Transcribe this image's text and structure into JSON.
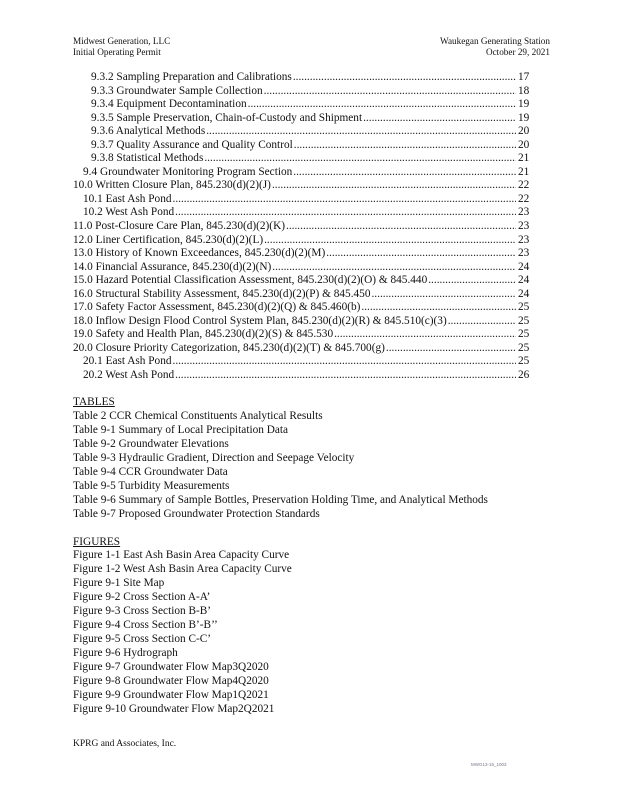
{
  "header": {
    "company": "Midwest Generation, LLC",
    "document": "Initial Operating Permit",
    "station": "Waukegan Generating Station",
    "date": "October 29, 2021"
  },
  "toc": [
    {
      "title": "9.3.2 Sampling Preparation and Calibrations",
      "page": "17",
      "level": 3
    },
    {
      "title": "9.3.3 Groundwater Sample Collection",
      "page": "18",
      "level": 3
    },
    {
      "title": "9.3.4 Equipment Decontamination",
      "page": "19",
      "level": 3
    },
    {
      "title": "9.3.5 Sample Preservation, Chain-of-Custody and Shipment",
      "page": "19",
      "level": 3
    },
    {
      "title": "9.3.6 Analytical Methods",
      "page": "20",
      "level": 3
    },
    {
      "title": "9.3.7 Quality Assurance and Quality Control",
      "page": "20",
      "level": 3
    },
    {
      "title": "9.3.8 Statistical Methods",
      "page": "21",
      "level": 3
    },
    {
      "title": "9.4 Groundwater Monitoring Program Section",
      "page": "21",
      "level": 2
    },
    {
      "title": "10.0 Written Closure Plan, 845.230(d)(2)(J)",
      "page": "22",
      "level": 1
    },
    {
      "title": "10.1 East Ash Pond",
      "page": "22",
      "level": 2
    },
    {
      "title": "10.2 West Ash Pond",
      "page": "23",
      "level": 2
    },
    {
      "title": "11.0 Post-Closure Care Plan, 845.230(d)(2)(K)",
      "page": "23",
      "level": 1
    },
    {
      "title": "12.0 Liner Certification, 845.230(d)(2)(L)",
      "page": "23",
      "level": 1
    },
    {
      "title": "13.0 History of Known Exceedances, 845.230(d)(2)(M)",
      "page": "23",
      "level": 1
    },
    {
      "title": "14.0 Financial Assurance, 845.230(d)(2)(N)",
      "page": "24",
      "level": 1
    },
    {
      "title": "15.0 Hazard Potential Classification Assessment, 845.230(d)(2)(O) & 845.440",
      "page": "24",
      "level": 1
    },
    {
      "title": "16.0 Structural Stability Assessment, 845.230(d)(2)(P) & 845.450",
      "page": "24",
      "level": 1
    },
    {
      "title": "17.0 Safety Factor Assessment, 845.230(d)(2)(Q) & 845.460(b)",
      "page": "25",
      "level": 1
    },
    {
      "title": "18.0 Inflow Design Flood Control System Plan, 845.230(d)(2)(R) & 845.510(c)(3)",
      "page": "25",
      "level": 1
    },
    {
      "title": "19.0 Safety and Health Plan, 845.230(d)(2)(S) & 845.530",
      "page": "25",
      "level": 1
    },
    {
      "title": "20.0 Closure Priority Categorization, 845.230(d)(2)(T) & 845.700(g)",
      "page": "25",
      "level": 1
    },
    {
      "title": "20.1 East Ash Pond",
      "page": "25",
      "level": 2
    },
    {
      "title": "20.2 West Ash Pond",
      "page": "26",
      "level": 2
    }
  ],
  "tables": {
    "heading": "TABLES",
    "items": [
      "Table 2 CCR Chemical Constituents Analytical Results",
      "Table 9-1 Summary of Local Precipitation Data",
      "Table 9-2 Groundwater Elevations",
      "Table 9-3 Hydraulic Gradient, Direction and Seepage Velocity",
      "Table 9-4 CCR Groundwater Data",
      "Table 9-5 Turbidity Measurements",
      "Table 9-6 Summary of Sample Bottles, Preservation Holding Time, and Analytical Methods",
      "Table 9-7 Proposed Groundwater Protection Standards"
    ]
  },
  "figures": {
    "heading": "FIGURES",
    "items": [
      "Figure 1-1 East Ash Basin Area Capacity Curve",
      "Figure 1-2 West Ash Basin Area Capacity Curve",
      "Figure 9-1 Site Map",
      "Figure 9-2 Cross Section A-A’",
      "Figure 9-3 Cross Section B-B’",
      "Figure 9-4 Cross Section B’-B’’",
      "Figure 9-5 Cross Section C-C’",
      "Figure 9-6 Hydrograph",
      "Figure 9-7 Groundwater Flow Map3Q2020",
      "Figure 9-8 Groundwater Flow Map4Q2020",
      "Figure 9-9 Groundwater Flow Map1Q2021",
      "Figure 9-10 Groundwater Flow Map2Q2021"
    ]
  },
  "footer": {
    "company": "KPRG and Associates, Inc.",
    "bates": "MWG13-15_1003"
  }
}
